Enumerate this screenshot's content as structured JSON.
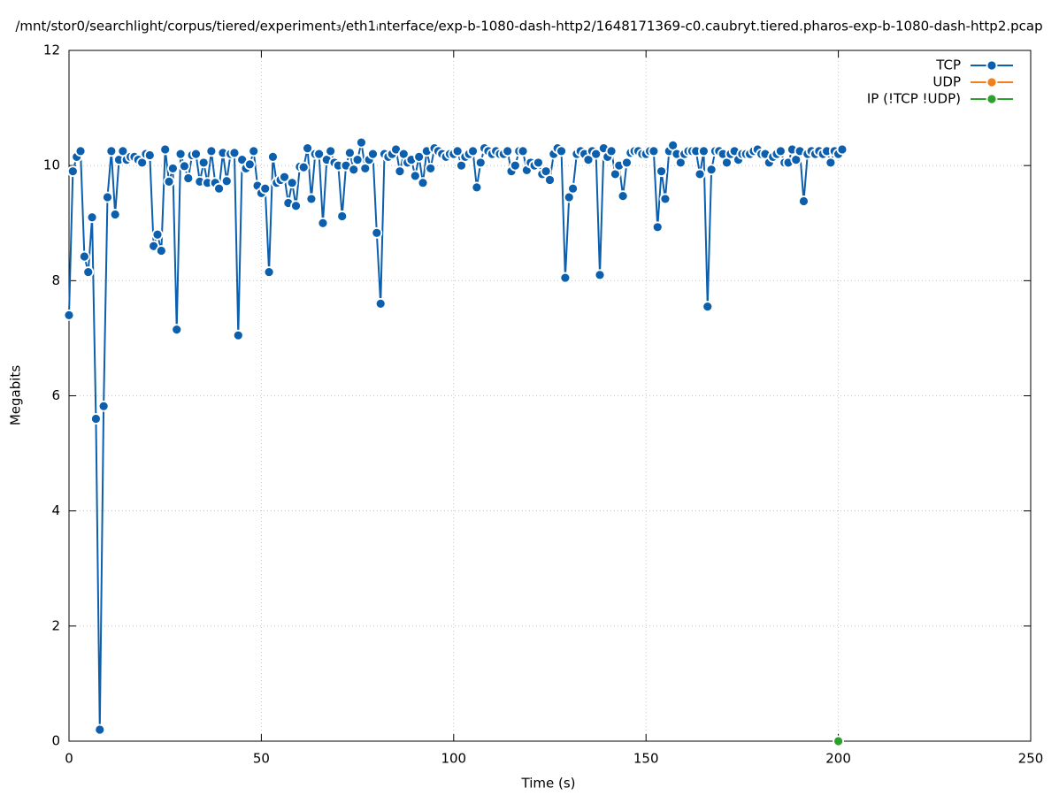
{
  "chart_data": {
    "type": "line",
    "title": "/mnt/stor0/searchlight/corpus/tiered/experiment₃/eth1ᵢnterface/exp-b-1080-dash-http2/1648171369-c0.caubryt.tiered.pharos-exp-b-1080-dash-http2.pcap",
    "x_label": "Time (s)",
    "y_label": "Megabits",
    "xlim": [
      0,
      250
    ],
    "xticks": [
      0,
      50,
      100,
      150,
      200,
      250
    ],
    "ylim": [
      0,
      12
    ],
    "yticks": [
      0,
      2,
      4,
      6,
      8,
      10,
      12
    ],
    "grid": true,
    "legend": "top-right",
    "x": [
      0,
      1,
      2,
      3,
      4,
      5,
      6,
      7,
      8,
      9,
      10,
      11,
      12,
      13,
      14,
      15,
      16,
      17,
      18,
      19,
      20,
      21,
      22,
      23,
      24,
      25,
      26,
      27,
      28,
      29,
      30,
      31,
      32,
      33,
      34,
      35,
      36,
      37,
      38,
      39,
      40,
      41,
      42,
      43,
      44,
      45,
      46,
      47,
      48,
      49,
      50,
      51,
      52,
      53,
      54,
      55,
      56,
      57,
      58,
      59,
      60,
      61,
      62,
      63,
      64,
      65,
      66,
      67,
      68,
      69,
      70,
      71,
      72,
      73,
      74,
      75,
      76,
      77,
      78,
      79,
      80,
      81,
      82,
      83,
      84,
      85,
      86,
      87,
      88,
      89,
      90,
      91,
      92,
      93,
      94,
      95,
      96,
      97,
      98,
      99,
      100,
      101,
      102,
      103,
      104,
      105,
      106,
      107,
      108,
      109,
      110,
      111,
      112,
      113,
      114,
      115,
      116,
      117,
      118,
      119,
      120,
      121,
      122,
      123,
      124,
      125,
      126,
      127,
      128,
      129,
      130,
      131,
      132,
      133,
      134,
      135,
      136,
      137,
      138,
      139,
      140,
      141,
      142,
      143,
      144,
      145,
      146,
      147,
      148,
      149,
      150,
      151,
      152,
      153,
      154,
      155,
      156,
      157,
      158,
      159,
      160,
      161,
      162,
      163,
      164,
      165,
      166,
      167,
      168,
      169,
      170,
      171,
      172,
      173,
      174,
      175,
      176,
      177,
      178,
      179,
      180,
      181,
      182,
      183,
      184,
      185,
      186,
      187,
      188,
      189,
      190,
      191,
      192,
      193,
      194,
      195,
      196,
      197,
      198,
      199,
      200,
      201
    ],
    "series": [
      {
        "name": "TCP",
        "color": "#0b5fad",
        "values": [
          7.4,
          9.9,
          10.15,
          10.25,
          8.42,
          8.15,
          9.1,
          5.6,
          0.2,
          5.82,
          9.45,
          10.25,
          9.15,
          10.1,
          10.25,
          10.1,
          10.15,
          10.15,
          10.1,
          10.05,
          10.2,
          10.18,
          8.6,
          8.8,
          8.52,
          10.28,
          9.72,
          9.95,
          7.15,
          10.2,
          9.99,
          9.78,
          10.18,
          10.2,
          9.72,
          10.05,
          9.7,
          10.25,
          9.7,
          9.6,
          10.22,
          9.73,
          10.2,
          10.22,
          7.05,
          10.1,
          9.95,
          10.02,
          10.25,
          9.65,
          9.52,
          9.6,
          8.15,
          10.15,
          9.7,
          9.75,
          9.8,
          9.35,
          9.7,
          9.3,
          9.98,
          9.97,
          10.3,
          9.42,
          10.2,
          10.2,
          9.0,
          10.1,
          10.25,
          10.05,
          10.0,
          9.12,
          10.0,
          10.22,
          9.93,
          10.1,
          10.4,
          9.95,
          10.1,
          10.2,
          8.83,
          7.6,
          10.2,
          10.15,
          10.2,
          10.28,
          9.9,
          10.2,
          10.05,
          10.1,
          9.82,
          10.15,
          9.7,
          10.25,
          9.95,
          10.3,
          10.25,
          10.2,
          10.15,
          10.2,
          10.2,
          10.25,
          10.0,
          10.15,
          10.2,
          10.25,
          9.62,
          10.05,
          10.3,
          10.25,
          10.2,
          10.25,
          10.2,
          10.2,
          10.25,
          9.9,
          10.0,
          10.25,
          10.25,
          9.92,
          10.05,
          10.0,
          10.05,
          9.85,
          9.9,
          9.75,
          10.2,
          10.3,
          10.25,
          8.05,
          9.45,
          9.6,
          10.2,
          10.25,
          10.2,
          10.1,
          10.25,
          10.2,
          8.1,
          10.3,
          10.15,
          10.25,
          9.85,
          10.0,
          9.47,
          10.05,
          10.22,
          10.25,
          10.25,
          10.2,
          10.2,
          10.25,
          10.25,
          8.93,
          9.9,
          9.42,
          10.25,
          10.35,
          10.2,
          10.05,
          10.2,
          10.25,
          10.25,
          10.25,
          9.85,
          10.25,
          7.55,
          9.93,
          10.25,
          10.25,
          10.2,
          10.05,
          10.2,
          10.25,
          10.1,
          10.2,
          10.2,
          10.2,
          10.25,
          10.28,
          10.2,
          10.2,
          10.05,
          10.15,
          10.2,
          10.25,
          10.05,
          10.05,
          10.28,
          10.1,
          10.25,
          9.38,
          10.2,
          10.25,
          10.2,
          10.25,
          10.2,
          10.25,
          10.05,
          10.25,
          10.2,
          10.28
        ]
      },
      {
        "name": "UDP",
        "color": "#f07f1c"
      },
      {
        "name": "IP (!TCP  !UDP)",
        "color": "#2ca02c",
        "x": [
          200
        ],
        "values": [
          0
        ]
      }
    ]
  }
}
